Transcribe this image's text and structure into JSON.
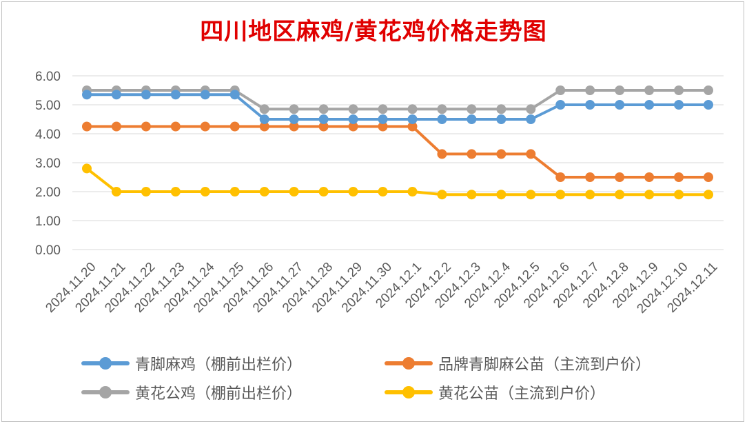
{
  "chart_data": {
    "type": "line",
    "title": "四川地区麻鸡/黄花鸡价格走势图",
    "categories": [
      "2024.11.20",
      "2024.11.21",
      "2024.11.22",
      "2024.11.23",
      "2024.11.24",
      "2024.11.25",
      "2024.11.26",
      "2024.11.27",
      "2024.11.28",
      "2024.11.29",
      "2024.11.30",
      "2024.12.1",
      "2024.12.2",
      "2024.12.3",
      "2024.12.4",
      "2024.12.5",
      "2024.12.6",
      "2024.12.7",
      "2024.12.8",
      "2024.12.9",
      "2024.12.10",
      "2024.12.11"
    ],
    "y_ticks": [
      "0.00",
      "1.00",
      "2.00",
      "3.00",
      "4.00",
      "5.00",
      "6.00"
    ],
    "ylim": [
      0,
      6
    ],
    "grid": true,
    "legend_position": "bottom",
    "series": [
      {
        "name": "青脚麻鸡（棚前出栏价）",
        "color": "#5b9bd5",
        "values": [
          5.35,
          5.35,
          5.35,
          5.35,
          5.35,
          5.35,
          4.5,
          4.5,
          4.5,
          4.5,
          4.5,
          4.5,
          4.5,
          4.5,
          4.5,
          4.5,
          5.0,
          5.0,
          5.0,
          5.0,
          5.0,
          5.0
        ]
      },
      {
        "name": "品牌青脚麻公苗（主流到户价）",
        "color": "#ed7d31",
        "values": [
          4.25,
          4.25,
          4.25,
          4.25,
          4.25,
          4.25,
          4.25,
          4.25,
          4.25,
          4.25,
          4.25,
          4.25,
          3.3,
          3.3,
          3.3,
          3.3,
          2.5,
          2.5,
          2.5,
          2.5,
          2.5,
          2.5
        ]
      },
      {
        "name": "黄花公鸡（棚前出栏价）",
        "color": "#a5a5a5",
        "values": [
          5.5,
          5.5,
          5.5,
          5.5,
          5.5,
          5.5,
          4.85,
          4.85,
          4.85,
          4.85,
          4.85,
          4.85,
          4.85,
          4.85,
          4.85,
          4.85,
          5.5,
          5.5,
          5.5,
          5.5,
          5.5,
          5.5
        ]
      },
      {
        "name": "黄花公苗（主流到户价）",
        "color": "#ffc000",
        "values": [
          2.8,
          2.0,
          2.0,
          2.0,
          2.0,
          2.0,
          2.0,
          2.0,
          2.0,
          2.0,
          2.0,
          2.0,
          1.9,
          1.9,
          1.9,
          1.9,
          1.9,
          1.9,
          1.9,
          1.9,
          1.9,
          1.9
        ]
      }
    ]
  }
}
